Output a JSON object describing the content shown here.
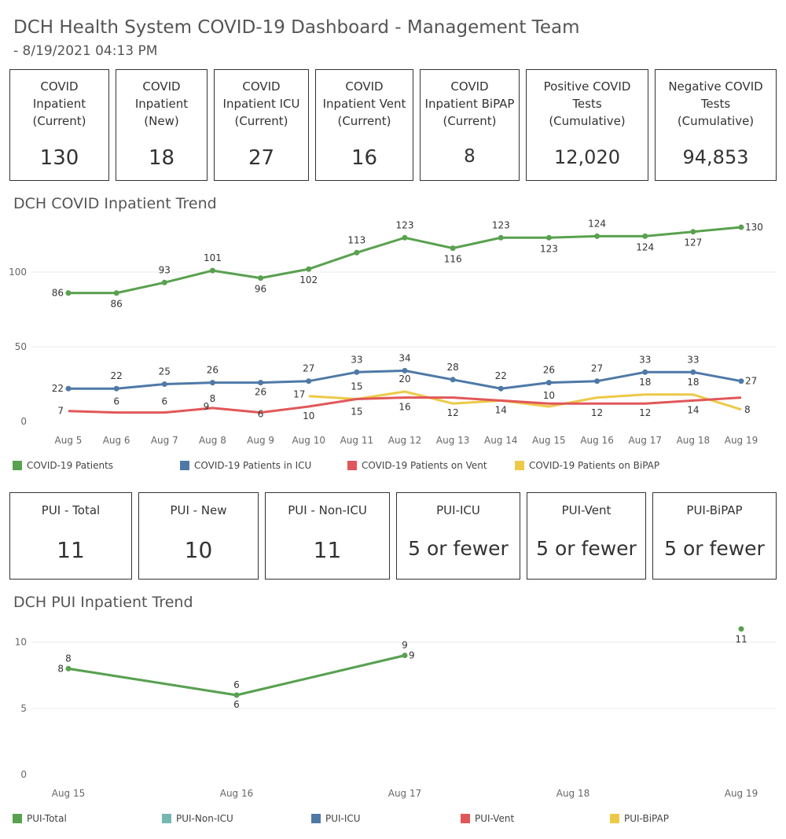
{
  "header": {
    "title": "DCH Health System COVID-19 Dashboard - Management Team",
    "subtitle": "- 8/19/2021 04:13 PM"
  },
  "kpis_top": [
    {
      "label": "COVID\nInpatient\n(Current)",
      "value": "130"
    },
    {
      "label": "COVID\nInpatient\n(New)",
      "value": "18"
    },
    {
      "label": "COVID\nInpatient ICU\n(Current)",
      "value": "27"
    },
    {
      "label": "COVID\nInpatient Vent\n(Current)",
      "value": "16"
    },
    {
      "label": "COVID\nInpatient BiPAP\n(Current)",
      "value": "8"
    },
    {
      "label": "Positive COVID\nTests\n(Cumulative)",
      "value": "12,020"
    },
    {
      "label": "Negative COVID\nTests\n(Cumulative)",
      "value": "94,853"
    }
  ],
  "kpis_pui": [
    {
      "label": "PUI - Total",
      "value": "11"
    },
    {
      "label": "PUI - New",
      "value": "10"
    },
    {
      "label": "PUI - Non-ICU",
      "value": "11"
    },
    {
      "label": "PUI-ICU",
      "value": "5 or fewer"
    },
    {
      "label": "PUI-Vent",
      "value": "5 or fewer"
    },
    {
      "label": "PUI-BiPAP",
      "value": "5 or fewer"
    }
  ],
  "chart_data": [
    {
      "type": "line",
      "title": "DCH COVID Inpatient Trend",
      "categories": [
        "Aug 5",
        "Aug 6",
        "Aug 7",
        "Aug 8",
        "Aug 9",
        "Aug 10",
        "Aug 11",
        "Aug 12",
        "Aug 13",
        "Aug 14",
        "Aug 15",
        "Aug 16",
        "Aug 17",
        "Aug 18",
        "Aug 19"
      ],
      "ylim": [
        0,
        140
      ],
      "yticks": [
        0,
        50,
        100
      ],
      "grid": true,
      "legend": "bottom",
      "series": [
        {
          "name": "COVID-19 Patients",
          "color": "#59a14f",
          "values": [
            86,
            86,
            93,
            101,
            96,
            102,
            113,
            123,
            116,
            123,
            123,
            124,
            124,
            127,
            130
          ],
          "labels": [
            "86",
            "86",
            "93",
            "101",
            "96",
            "102",
            "113",
            "123",
            "116",
            "123",
            "123",
            "124",
            "124",
            "127",
            "130"
          ]
        },
        {
          "name": "COVID-19 Patients in ICU",
          "color": "#4e79a7",
          "values": [
            22,
            22,
            25,
            26,
            26,
            27,
            33,
            34,
            28,
            22,
            26,
            27,
            33,
            33,
            27
          ],
          "labels": [
            "22",
            "22",
            "25",
            "26",
            "26",
            "27",
            "33",
            "34",
            "28",
            "22",
            "26",
            "27",
            "33",
            "33",
            "27"
          ]
        },
        {
          "name": "COVID-19 Patients on Vent",
          "color": "#e15759",
          "values": [
            7,
            6,
            6,
            9,
            6,
            10,
            15,
            16,
            16,
            14,
            12,
            12,
            12,
            14,
            16
          ],
          "labels": [
            "7",
            "6",
            "6",
            "9",
            "6",
            "10",
            "15",
            "16",
            "",
            "14",
            "",
            "12",
            "12",
            "14",
            ""
          ]
        },
        {
          "name": "COVID-19 Patients on BiPAP",
          "color": "#edc948",
          "values": [
            null,
            null,
            null,
            8,
            null,
            17,
            15,
            20,
            12,
            14,
            10,
            16,
            18,
            18,
            8
          ],
          "labels": [
            "",
            "",
            "",
            "8",
            "",
            "17",
            "15",
            "20",
            "12",
            "",
            "10",
            "",
            "18",
            "18",
            "8"
          ]
        }
      ]
    },
    {
      "type": "line",
      "title": "DCH PUI Inpatient Trend",
      "categories": [
        "Aug 15",
        "Aug 16",
        "Aug 17",
        "Aug 18",
        "Aug 19"
      ],
      "ylim": [
        0,
        12
      ],
      "yticks": [
        0,
        5,
        10
      ],
      "grid": true,
      "legend": "bottom",
      "series": [
        {
          "name": "PUI-Total",
          "color": "#59a14f",
          "values": [
            8,
            6,
            9,
            null,
            11
          ]
        },
        {
          "name": "PUI-Non-ICU",
          "color": "#76b7b2",
          "values": [
            8,
            6,
            9,
            null,
            11
          ]
        },
        {
          "name": "PUI-ICU",
          "color": "#4e79a7",
          "values": [
            null,
            null,
            null,
            null,
            null
          ]
        },
        {
          "name": "PUI-Vent",
          "color": "#e15759",
          "values": [
            null,
            null,
            null,
            null,
            null
          ]
        },
        {
          "name": "PUI-BiPAP",
          "color": "#edc948",
          "values": [
            null,
            null,
            null,
            null,
            null
          ]
        }
      ]
    }
  ]
}
